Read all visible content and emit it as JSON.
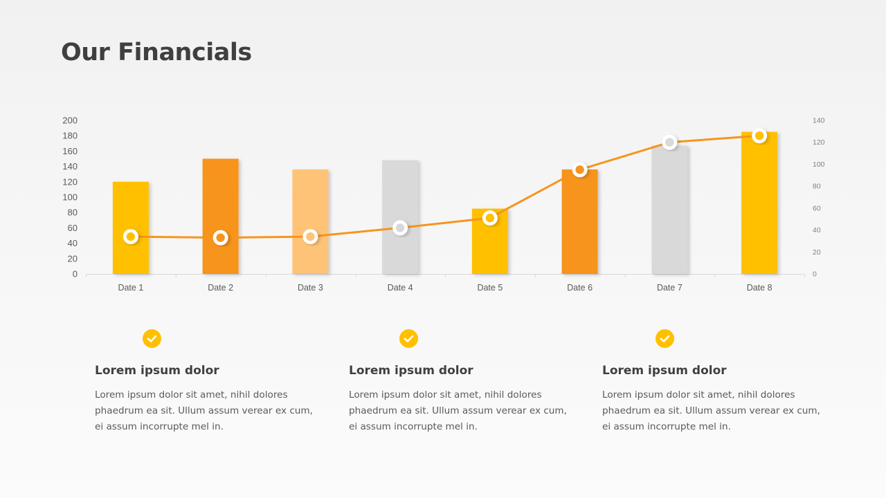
{
  "page": {
    "title": "Our Financials"
  },
  "chart_data": {
    "type": "bar",
    "categories": [
      "Date 1",
      "Date 2",
      "Date 3",
      "Date 4",
      "Date 5",
      "Date 6",
      "Date 7",
      "Date 8"
    ],
    "bar_values": [
      120,
      150,
      136,
      148,
      85,
      136,
      167,
      185
    ],
    "bar_colors": [
      "#ffc000",
      "#f7941d",
      "#ffc378",
      "#d9d9d9",
      "#ffc000",
      "#f7941d",
      "#d9d9d9",
      "#ffc000"
    ],
    "line_values": [
      34,
      33,
      34,
      42,
      51,
      95,
      120,
      126
    ],
    "marker_colors": [
      "#ffc000",
      "#f7941d",
      "#ffc378",
      "#d9d9d9",
      "#ffc000",
      "#f7941d",
      "#d9d9d9",
      "#ffc000"
    ],
    "line_color": "#f7941d",
    "y_left": {
      "min": 0,
      "max": 200,
      "ticks": [
        "0",
        "20",
        "40",
        "60",
        "80",
        "100",
        "120",
        "140",
        "160",
        "180",
        "200"
      ]
    },
    "y_right": {
      "min": 0,
      "max": 140,
      "ticks": [
        "0",
        "20",
        "40",
        "60",
        "80",
        "100",
        "120",
        "140"
      ]
    },
    "grid": false
  },
  "features": [
    {
      "title": "Lorem ipsum dolor",
      "body": "Lorem ipsum dolor sit amet, nihil dolores phaedrum ea sit. Ullum assum verear ex cum, ei assum incorrupte mel in."
    },
    {
      "title": "Lorem ipsum dolor",
      "body": "Lorem ipsum dolor sit amet, nihil dolores phaedrum ea sit. Ullum assum verear ex cum, ei assum incorrupte mel in."
    },
    {
      "title": "Lorem ipsum dolor",
      "body": "Lorem ipsum dolor sit amet, nihil dolores phaedrum ea sit. Ullum assum verear ex cum, ei assum incorrupte mel in."
    }
  ],
  "icons": {
    "check": "check-circle-icon",
    "accent": "#ffc000"
  }
}
